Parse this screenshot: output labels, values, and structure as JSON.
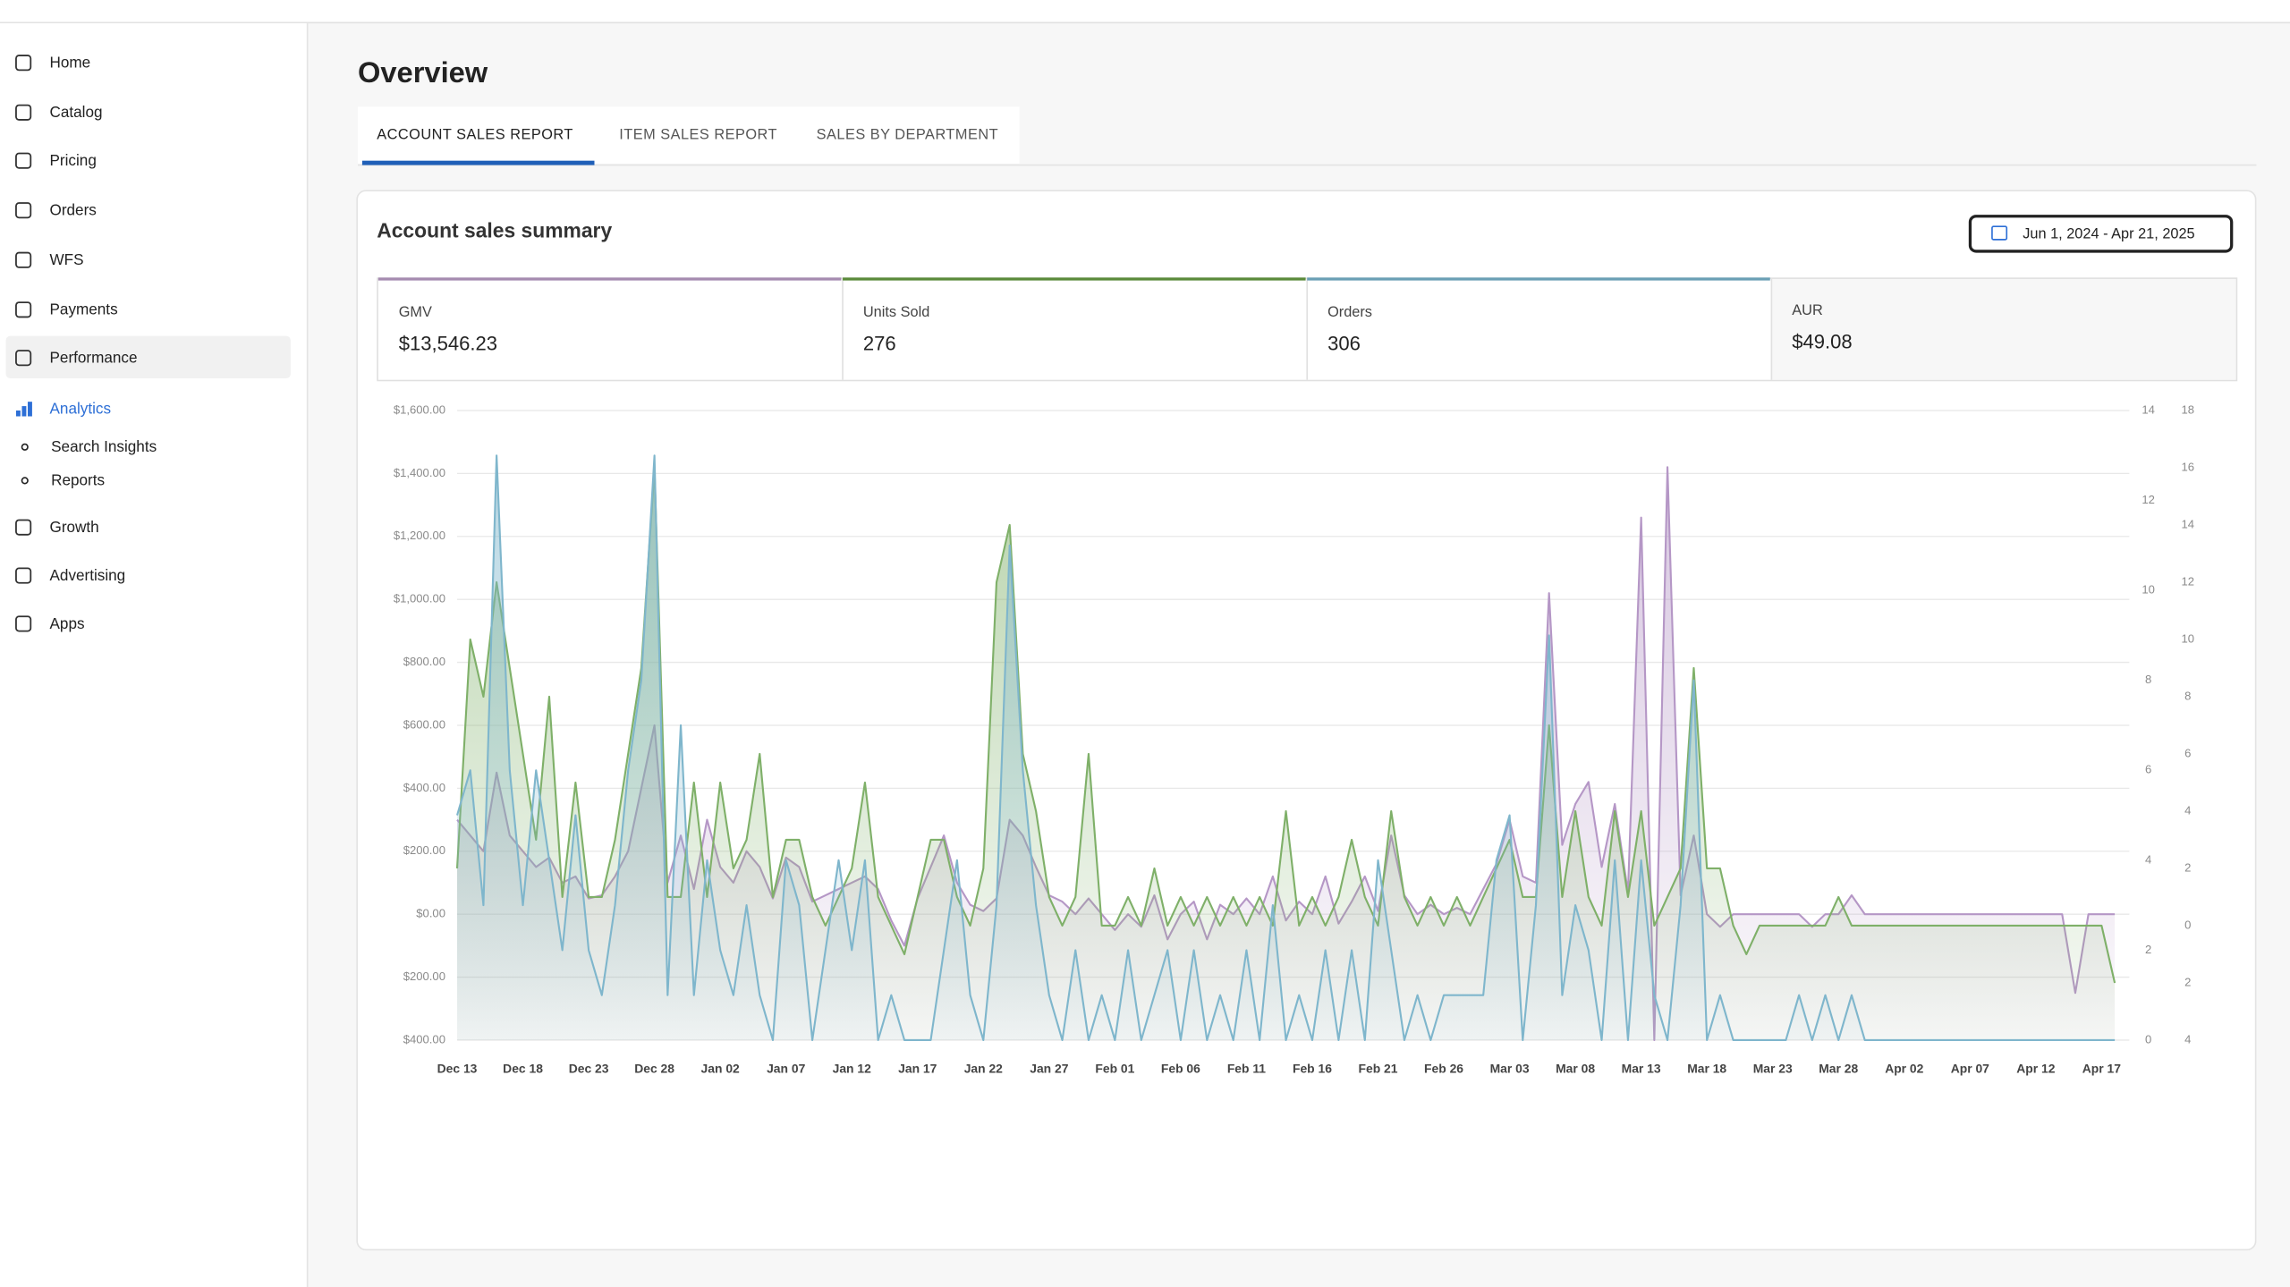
{
  "sidebar": {
    "items": [
      "Home",
      "Catalog",
      "Pricing",
      "Orders",
      "WFS",
      "Payments",
      "Performance",
      "Analytics",
      "Growth",
      "Advertising",
      "Apps"
    ],
    "analytics_sub": [
      "Search Insights",
      "Reports"
    ]
  },
  "page_title": "Overview",
  "tabs": [
    "ACCOUNT SALES REPORT",
    "ITEM SALES REPORT",
    "SALES BY DEPARTMENT"
  ],
  "card": {
    "title": "Account sales summary",
    "date_range": "Jun 1, 2024 - Apr 21, 2025",
    "metric_values": [
      "$13,546.23",
      "276",
      "306"
    ],
    "aur": {
      "label": "AUR",
      "value": "$49.08"
    }
  },
  "chart_data": {
    "type": "line",
    "categories": [
      "Dec 13",
      null,
      null,
      null,
      null,
      "Dec 18",
      null,
      null,
      null,
      null,
      "Dec 23",
      null,
      null,
      null,
      null,
      "Dec 28",
      null,
      null,
      null,
      null,
      "Jan 02",
      null,
      null,
      null,
      null,
      "Jan 07",
      null,
      null,
      null,
      null,
      "Jan 12",
      null,
      null,
      null,
      null,
      "Jan 17",
      null,
      null,
      null,
      null,
      "Jan 22",
      null,
      null,
      null,
      null,
      "Jan 27",
      null,
      null,
      null,
      null,
      "Feb 01",
      null,
      null,
      null,
      null,
      "Feb 06",
      null,
      null,
      null,
      null,
      "Feb 11",
      null,
      null,
      null,
      null,
      "Feb 16",
      null,
      null,
      null,
      null,
      "Feb 21",
      null,
      null,
      null,
      null,
      "Feb 26",
      null,
      null,
      null,
      null,
      "Mar 03",
      null,
      null,
      null,
      null,
      "Mar 08",
      null,
      null,
      null,
      null,
      "Mar 13",
      null,
      null,
      null,
      null,
      "Mar 18",
      null,
      null,
      null,
      null,
      "Mar 23",
      null,
      null,
      null,
      null,
      "Mar 28",
      null,
      null,
      null,
      null,
      "Apr 02",
      null,
      null,
      null,
      null,
      "Apr 07",
      null,
      null,
      null,
      null,
      "Apr 12",
      null,
      null,
      null,
      null,
      "Apr 17",
      null
    ],
    "series": [
      {
        "name": "GMV",
        "color": "#b597c6",
        "border": "#a58bb0",
        "axis": "y",
        "values": [
          300,
          250,
          200,
          450,
          250,
          200,
          150,
          180,
          100,
          120,
          50,
          60,
          120,
          200,
          400,
          600,
          100,
          250,
          80,
          300,
          150,
          100,
          200,
          150,
          50,
          180,
          150,
          40,
          60,
          80,
          100,
          120,
          80,
          -20,
          -100,
          50,
          150,
          250,
          100,
          30,
          10,
          50,
          300,
          250,
          150,
          60,
          40,
          0,
          50,
          0,
          -50,
          0,
          -40,
          60,
          -80,
          0,
          40,
          -80,
          30,
          0,
          50,
          0,
          120,
          -20,
          40,
          0,
          120,
          -30,
          40,
          120,
          10,
          250,
          60,
          0,
          30,
          0,
          20,
          0,
          80,
          160,
          300,
          120,
          100,
          1020,
          220,
          350,
          420,
          150,
          350,
          70,
          1260,
          -400,
          1420,
          60,
          250,
          0,
          -40,
          0,
          0,
          0,
          0,
          0,
          0,
          -40,
          0,
          0,
          60,
          0,
          0,
          0,
          0,
          0,
          0,
          0,
          0,
          0,
          0,
          0,
          0,
          0,
          0,
          0,
          0,
          -250,
          0,
          0,
          0
        ]
      },
      {
        "name": "Units Sold",
        "color": "#7fb069",
        "border": "#5a8a3a",
        "axis": "y3",
        "values": [
          2,
          10,
          8,
          12,
          9,
          6,
          3,
          8,
          1,
          5,
          1,
          1,
          3,
          6,
          9,
          16,
          1,
          1,
          5,
          1,
          5,
          2,
          3,
          6,
          1,
          3,
          3,
          1,
          0,
          1,
          2,
          5,
          1,
          0,
          -1,
          1,
          3,
          3,
          1,
          0,
          2,
          12,
          14,
          6,
          4,
          1,
          0,
          1,
          6,
          0,
          0,
          1,
          0,
          2,
          0,
          1,
          0,
          1,
          0,
          1,
          0,
          1,
          0,
          4,
          0,
          1,
          0,
          1,
          3,
          1,
          0,
          4,
          1,
          0,
          1,
          0,
          1,
          0,
          1,
          2,
          3,
          1,
          1,
          7,
          1,
          4,
          1,
          0,
          4,
          1,
          4,
          0,
          1,
          2,
          9,
          2,
          2,
          0,
          -1,
          0,
          0,
          0,
          0,
          0,
          0,
          1,
          0,
          0,
          0,
          0,
          0,
          0,
          0,
          0,
          0,
          0,
          0,
          0,
          0,
          0,
          0,
          0,
          0,
          0,
          0,
          0,
          -2
        ]
      },
      {
        "name": "Orders",
        "color": "#7fb6cc",
        "border": "#6a9fb5",
        "axis": "y2",
        "values": [
          5,
          6,
          3,
          13,
          6,
          3,
          6,
          4,
          2,
          5,
          2,
          1,
          3,
          6,
          8,
          13,
          1,
          7,
          1,
          4,
          2,
          1,
          3,
          1,
          0,
          4,
          3,
          0,
          2,
          4,
          2,
          4,
          0,
          1,
          0,
          0,
          0,
          2,
          4,
          1,
          0,
          3,
          11,
          6,
          3,
          1,
          0,
          2,
          0,
          1,
          0,
          2,
          0,
          1,
          2,
          0,
          2,
          0,
          1,
          0,
          2,
          0,
          3,
          0,
          1,
          0,
          2,
          0,
          2,
          0,
          4,
          2,
          0,
          1,
          0,
          1,
          1,
          1,
          1,
          4,
          5,
          0,
          3,
          9,
          1,
          3,
          2,
          0,
          4,
          0,
          4,
          1,
          0,
          3,
          8,
          0,
          1,
          0,
          0,
          0,
          0,
          0,
          1,
          0,
          1,
          0,
          1,
          0,
          0,
          0,
          0,
          0,
          0,
          0,
          0,
          0,
          0,
          0,
          0,
          0,
          0,
          0,
          0,
          0,
          0,
          0,
          0
        ]
      }
    ],
    "ylim": [
      -400,
      1600
    ],
    "yticks": [
      {
        "value": -400,
        "label": "$400.00"
      },
      {
        "value": -200,
        "label": "$200.00"
      },
      {
        "value": 0,
        "label": "$0.00"
      },
      {
        "value": 200,
        "label": "$200.00"
      },
      {
        "value": 400,
        "label": "$400.00"
      },
      {
        "value": 600,
        "label": "$600.00"
      },
      {
        "value": 800,
        "label": "$800.00"
      },
      {
        "value": 1000,
        "label": "$1,000.00"
      },
      {
        "value": 1200,
        "label": "$1,200.00"
      },
      {
        "value": 1400,
        "label": "$1,400.00"
      },
      {
        "value": 1600,
        "label": "$1,600.00"
      }
    ],
    "y2lim": [
      0,
      14
    ],
    "y2ticks": [
      0,
      2,
      4,
      6,
      8,
      10,
      12,
      14
    ],
    "y3lim": [
      -4,
      18
    ],
    "y3ticks": [
      {
        "value": -4,
        "label": "4"
      },
      {
        "value": -2,
        "label": "2"
      },
      0,
      2,
      4,
      6,
      8,
      10,
      12,
      14,
      16,
      18
    ],
    "grid": true
  }
}
